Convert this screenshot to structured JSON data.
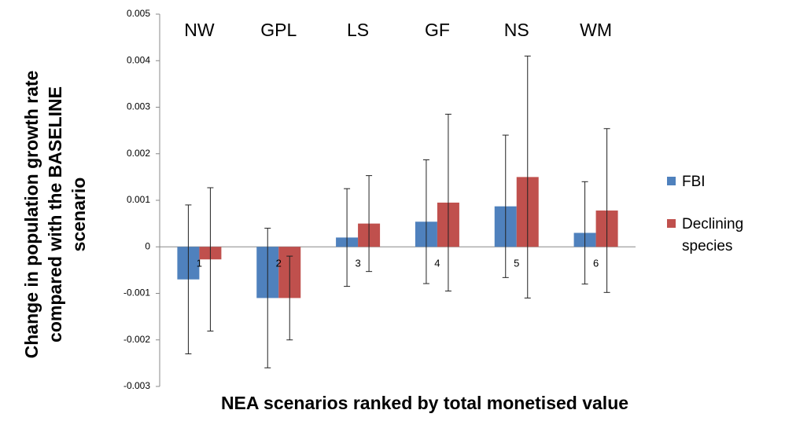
{
  "chart_data": {
    "type": "bar",
    "xlabel": "NEA scenarios ranked by total monetised value",
    "ylabel": "Change in population growth rate compared with the BASELINE scenario",
    "annotations": [
      "NW",
      "GPL",
      "LS",
      "GF",
      "NS",
      "WM"
    ],
    "categories": [
      "1",
      "2",
      "3",
      "4",
      "5",
      "6"
    ],
    "series": [
      {
        "name": "FBI",
        "color": "#4f81bd",
        "values": [
          -0.0007,
          -0.0011,
          0.0002,
          0.00054,
          0.00087,
          0.0003
        ],
        "errors": [
          0.0016,
          0.0015,
          0.00105,
          0.00133,
          0.00153,
          0.0011
        ]
      },
      {
        "name": "Declining species",
        "color": "#c0504d",
        "values": [
          -0.00027,
          -0.0011,
          0.0005,
          0.00095,
          0.0015,
          0.00078
        ],
        "errors": [
          0.00154,
          0.0009,
          0.00103,
          0.0019,
          0.0026,
          0.00176
        ]
      }
    ],
    "ylim": [
      -0.003,
      0.005
    ],
    "yticks": [
      -0.003,
      -0.002,
      -0.001,
      0,
      0.001,
      0.002,
      0.003,
      0.004,
      0.005
    ],
    "grid": false,
    "legend": "right"
  }
}
